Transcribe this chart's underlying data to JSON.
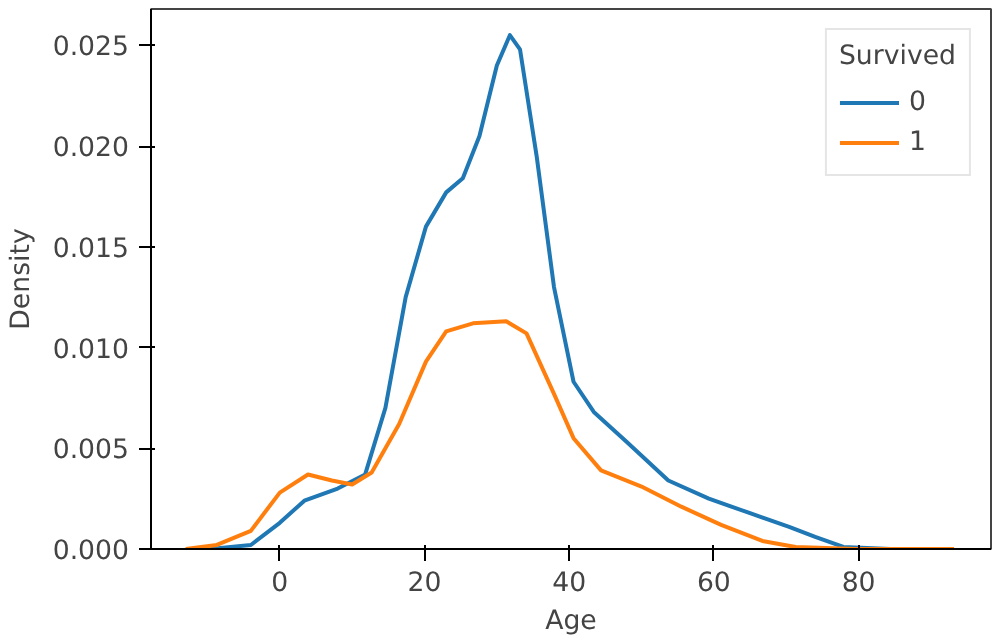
{
  "chart_data": {
    "type": "line",
    "xlabel": "Age",
    "ylabel": "Density",
    "legend_title": "Survived",
    "legend": "top right",
    "grid": false,
    "xlim": [
      -17.8,
      98.3
    ],
    "ylim": [
      0,
      0.0268
    ],
    "xticks": [
      0,
      20,
      40,
      60,
      80
    ],
    "yticks": [
      {
        "value": 0,
        "label": "0.000"
      },
      {
        "value": 0.005,
        "label": "0.005"
      },
      {
        "value": 0.01,
        "label": "0.010"
      },
      {
        "value": 0.015,
        "label": "0.015"
      },
      {
        "value": 0.02,
        "label": "0.020"
      },
      {
        "value": 0.025,
        "label": "0.025"
      }
    ],
    "series": [
      {
        "name": "0",
        "color": "#1f77b4",
        "x": [
          -9.6,
          -4,
          0,
          3.4,
          8,
          11.8,
          14.6,
          17.4,
          20.2,
          23,
          25.3,
          27.6,
          30,
          31.8,
          33.2,
          35.5,
          37.9,
          40.6,
          43.4,
          48,
          53.7,
          59.3,
          64.8,
          70.4,
          74,
          77.9,
          84.4
        ],
        "values": [
          0,
          0.0002,
          0.0013,
          0.0024,
          0.003,
          0.0037,
          0.007,
          0.0125,
          0.016,
          0.0177,
          0.0184,
          0.0205,
          0.024,
          0.0255,
          0.0248,
          0.0195,
          0.013,
          0.0083,
          0.0068,
          0.0053,
          0.0034,
          0.0025,
          0.0018,
          0.0011,
          0.0006,
          0.0001,
          0
        ]
      },
      {
        "name": "1",
        "color": "#ff7f0e",
        "x": [
          -13,
          -8.7,
          -4,
          0,
          3.9,
          7.2,
          10,
          12.7,
          16.5,
          20.2,
          23,
          26.7,
          31.3,
          34.1,
          37.9,
          40.6,
          44.4,
          50,
          55.5,
          61,
          66.7,
          71.3,
          79.7,
          93.2
        ],
        "values": [
          0,
          0.0002,
          0.0009,
          0.0028,
          0.0037,
          0.0034,
          0.0032,
          0.0038,
          0.0062,
          0.0093,
          0.0108,
          0.0112,
          0.0113,
          0.0107,
          0.0077,
          0.0055,
          0.0039,
          0.0031,
          0.0021,
          0.0012,
          0.0004,
          0.0001,
          0,
          0
        ]
      }
    ]
  }
}
